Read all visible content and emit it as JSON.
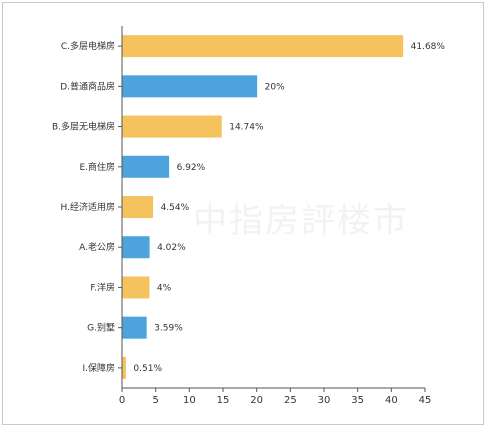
{
  "chart_data": {
    "type": "bar",
    "orientation": "horizontal",
    "categories": [
      "C.多层电梯房",
      "D.普通商品房",
      "B.多层无电梯房",
      "E.商住房",
      "H.经济适用房",
      "A.老公房",
      "F.洋房",
      "G.别墅",
      "I.保障房"
    ],
    "values": [
      41.68,
      20,
      14.74,
      6.92,
      4.54,
      4.02,
      4,
      3.59,
      0.51
    ],
    "value_labels": [
      "41.68%",
      "20%",
      "14.74%",
      "6.92%",
      "4.54%",
      "4.02%",
      "4%",
      "3.59%",
      "0.51%"
    ],
    "bar_colors": [
      "#f5c35e",
      "#4da3dc",
      "#f5c35e",
      "#4da3dc",
      "#f5c35e",
      "#4da3dc",
      "#f5c35e",
      "#4da3dc",
      "#f5c35e"
    ],
    "xlim": [
      0,
      45
    ],
    "xticks": [
      0,
      5,
      10,
      15,
      20,
      25,
      30,
      35,
      40,
      45
    ],
    "grid": false,
    "legend": "none"
  },
  "watermark": "中指房評楼市"
}
